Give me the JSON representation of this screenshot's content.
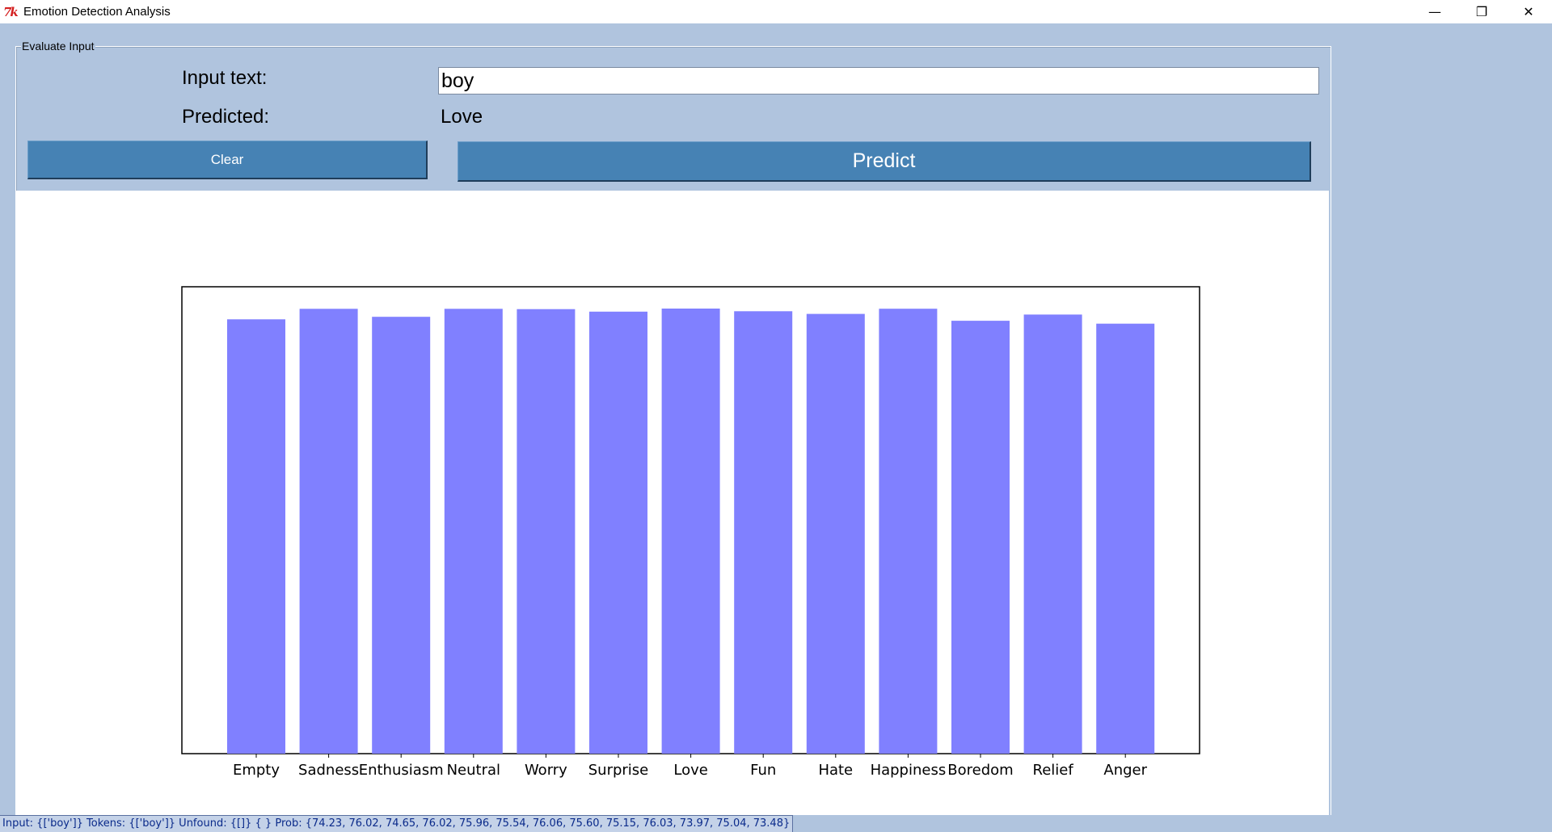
{
  "window": {
    "title": "Emotion Detection Analysis",
    "icon": "tk-icon",
    "icon_text": "7k",
    "controls": {
      "minimize": "—",
      "restore": "❐",
      "close": "✕"
    }
  },
  "frame": {
    "label": "Evaluate Input"
  },
  "form": {
    "input_label": "Input text:",
    "input_value": "boy",
    "predicted_label": "Predicted:",
    "predicted_value": "Love"
  },
  "buttons": {
    "clear": "Clear",
    "predict": "Predict"
  },
  "colors": {
    "background": "#b0c4de",
    "button": "#4682b4",
    "bar": "#8080ff"
  },
  "chart_data": {
    "type": "bar",
    "categories": [
      "Empty",
      "Sadness",
      "Enthusiasm",
      "Neutral",
      "Worry",
      "Surprise",
      "Love",
      "Fun",
      "Hate",
      "Happiness",
      "Boredom",
      "Relief",
      "Anger"
    ],
    "values": [
      74.23,
      76.02,
      74.65,
      76.02,
      75.96,
      75.54,
      76.06,
      75.6,
      75.15,
      76.03,
      73.97,
      75.04,
      73.48
    ],
    "ylim": [
      0,
      76.06
    ],
    "grid": false,
    "legend": "none"
  },
  "status": {
    "text": "Input: {['boy']} Tokens: {['boy']} Unfound: {[]} { } Prob: {74.23, 76.02, 74.65, 76.02, 75.96, 75.54, 76.06, 75.60, 75.15, 76.03, 73.97, 75.04, 73.48}"
  }
}
